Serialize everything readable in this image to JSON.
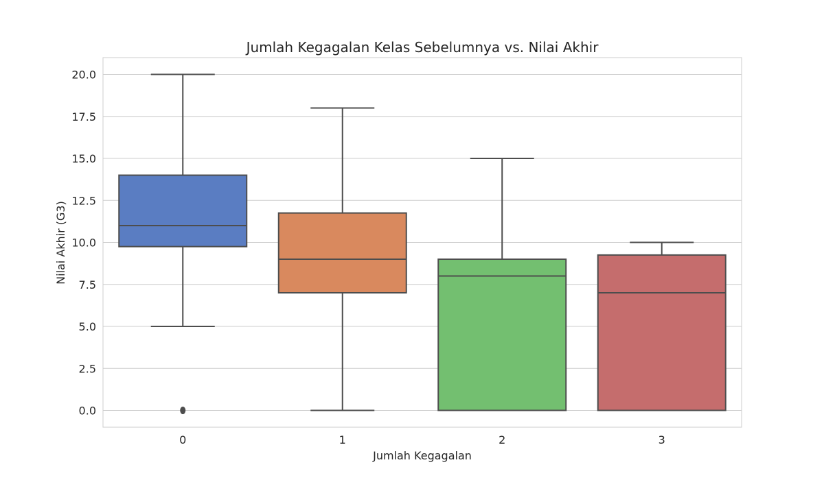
{
  "chart_data": {
    "type": "box",
    "title": "Jumlah Kegagalan Kelas Sebelumnya vs. Nilai Akhir",
    "xlabel": "Jumlah Kegagalan",
    "ylabel": "Nilai Akhir (G3)",
    "ylim": [
      -1,
      21
    ],
    "yticks": [
      "0.0",
      "2.5",
      "5.0",
      "7.5",
      "10.0",
      "12.5",
      "15.0",
      "17.5",
      "20.0"
    ],
    "grid": true,
    "categories": [
      "0",
      "1",
      "2",
      "3"
    ],
    "boxes": [
      {
        "category": "0",
        "whisker_low": 5,
        "q1": 9.75,
        "median": 11,
        "q3": 14,
        "whisker_high": 20,
        "outliers": [
          0
        ],
        "color": "#5a7dc2"
      },
      {
        "category": "1",
        "whisker_low": 0,
        "q1": 7,
        "median": 9,
        "q3": 11.75,
        "whisker_high": 18,
        "outliers": [],
        "color": "#d9895e"
      },
      {
        "category": "2",
        "whisker_low": 0,
        "q1": 0,
        "median": 8,
        "q3": 9,
        "whisker_high": 15,
        "outliers": [],
        "color": "#73bf70"
      },
      {
        "category": "3",
        "whisker_low": 0,
        "q1": 0,
        "median": 7,
        "q3": 9.25,
        "whisker_high": 10,
        "outliers": [],
        "color": "#c56d6d"
      }
    ]
  }
}
